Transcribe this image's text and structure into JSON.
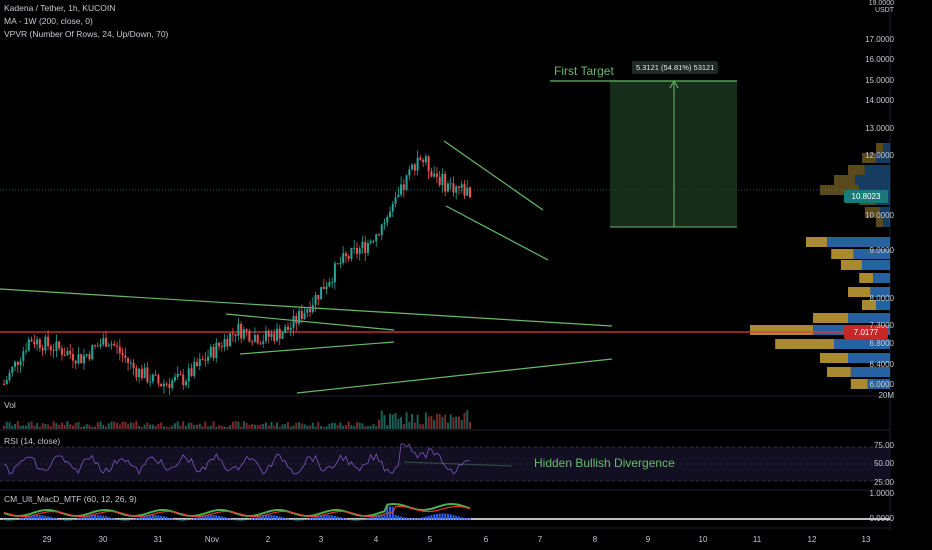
{
  "legend": {
    "symbol_line": "Kadena / Tether, 1h, KUCOIN",
    "ma_line": "MA - 1W (200, close, 0)",
    "vpvr_line": "VPVR (Number Of Rows, 24, Up/Down, 70)"
  },
  "panes": {
    "volume_label": "Vol",
    "rsi_label": "RSI (14, close)",
    "macd_label": "CM_Ult_MacD_MTF (60, 12, 26, 9)"
  },
  "price_axis": {
    "currency_top": "19.0000",
    "currency": "USDT",
    "ticks": [
      "17.0000",
      "16.0000",
      "15.0000",
      "14.0000",
      "13.0000",
      "12.0000",
      "10.0000",
      "9.0000",
      "8.0000",
      "7.3000",
      "6.8000",
      "6.4000",
      "6.0000"
    ],
    "scale": "log",
    "current_price": "10.8023",
    "red_level": "7.0177",
    "volume_unit": "20M"
  },
  "rsi_axis": {
    "ticks": [
      "75.00",
      "50.00",
      "25.00"
    ]
  },
  "macd_axis": {
    "ticks": [
      "1.0000",
      "0.0000"
    ]
  },
  "time_axis": {
    "ticks": [
      "29",
      "30",
      "31",
      "Nov",
      "2",
      "3",
      "4",
      "5",
      "6",
      "7",
      "8",
      "9",
      "10",
      "11",
      "12",
      "13"
    ]
  },
  "annotations": {
    "first_target": "First Target",
    "measure": "5.3121 (54.81%) 53121",
    "divergence": "Hidden Bullish Divergence"
  },
  "colors": {
    "up": "#26a69a",
    "down": "#ef5350",
    "trendline": "#66bb6a",
    "red_line": "#e53935",
    "target_zone": "#1b3a1f",
    "rsi_line": "#7e57c2",
    "price_tag": "#1a7a7a",
    "red_tag": "#c62828",
    "vpvr_up": "#2a6db0",
    "vpvr_down": "#c8a23a"
  },
  "chart_data": {
    "type": "candlestick",
    "scale": "log",
    "x_range": [
      "Oct 28",
      "Nov 13"
    ],
    "y_range": [
      5.8,
      19.0
    ],
    "key_levels": {
      "current": 10.8023,
      "support": 7.0177,
      "first_target": 15.0
    },
    "price_path": [
      {
        "t": "Oct 28 12:00",
        "close": 6.0
      },
      {
        "t": "Oct 29 00:00",
        "close": 6.9
      },
      {
        "t": "Oct 29 12:00",
        "close": 6.7
      },
      {
        "t": "Oct 30 00:00",
        "close": 6.5
      },
      {
        "t": "Oct 30 12:00",
        "close": 6.9
      },
      {
        "t": "Oct 31 00:00",
        "close": 6.3
      },
      {
        "t": "Oct 31 12:00",
        "close": 6.0
      },
      {
        "t": "Nov 01 00:00",
        "close": 6.1
      },
      {
        "t": "Nov 01 12:00",
        "close": 6.6
      },
      {
        "t": "Nov 02 00:00",
        "close": 7.1
      },
      {
        "t": "Nov 02 12:00",
        "close": 6.9
      },
      {
        "t": "Nov 03 00:00",
        "close": 7.1
      },
      {
        "t": "Nov 03 12:00",
        "close": 7.8
      },
      {
        "t": "Nov 04 00:00",
        "close": 8.7
      },
      {
        "t": "Nov 04 12:00",
        "close": 9.2
      },
      {
        "t": "Nov 05 00:00",
        "close": 10.2
      },
      {
        "t": "Nov 05 06:00",
        "close": 12.1
      },
      {
        "t": "Nov 05 12:00",
        "close": 11.1
      },
      {
        "t": "Nov 05 18:00",
        "close": 10.8
      }
    ]
  }
}
